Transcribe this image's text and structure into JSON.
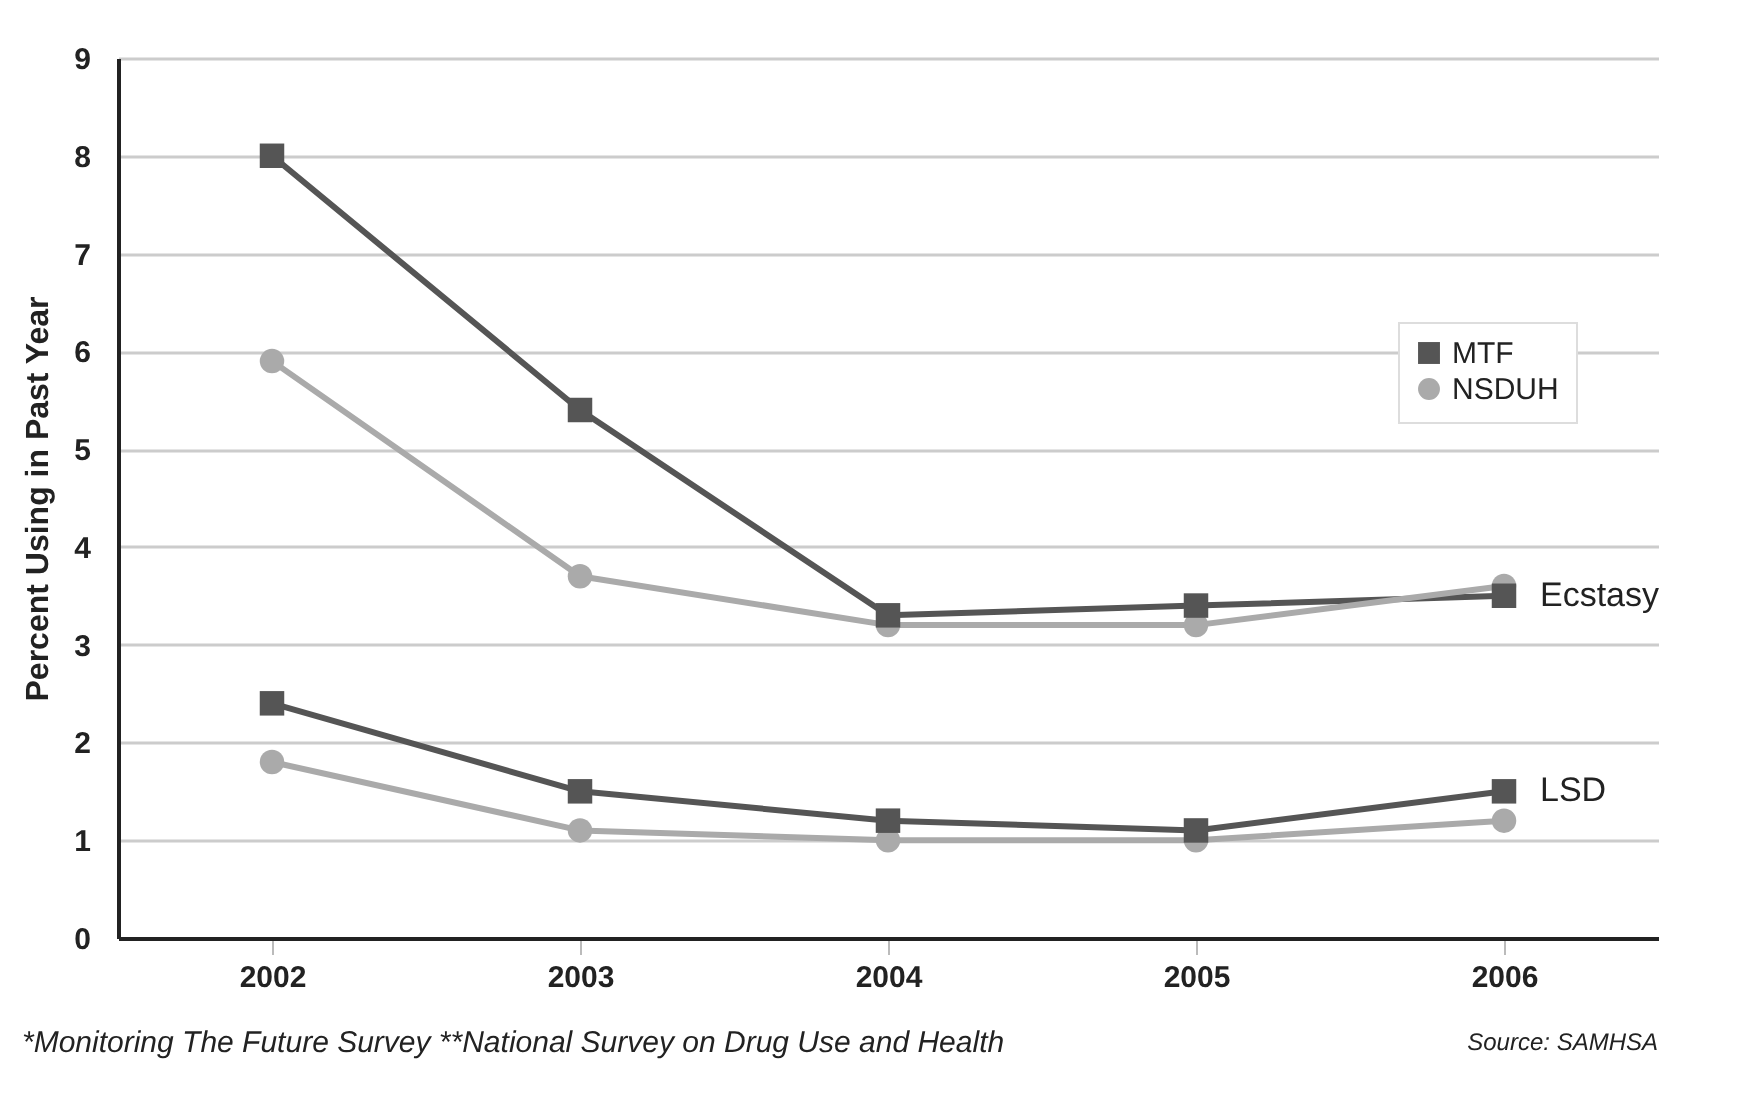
{
  "chart_data": {
    "type": "line",
    "ylabel": "Percent Using in Past Year",
    "categories": [
      "2002",
      "2003",
      "2004",
      "2005",
      "2006"
    ],
    "series": [
      {
        "name": "MTF",
        "color": "#555555",
        "marker": "square",
        "values": [
          8.0,
          5.4,
          3.3,
          3.4,
          3.5
        ]
      },
      {
        "name": "NSDUH",
        "color": "#aaaaaa",
        "marker": "circle",
        "values": [
          5.9,
          3.7,
          3.2,
          3.2,
          3.6
        ]
      },
      {
        "color": "#555555",
        "marker": "square",
        "values": [
          2.4,
          1.5,
          1.2,
          1.1,
          1.5
        ]
      },
      {
        "color": "#aaaaaa",
        "marker": "circle",
        "values": [
          1.8,
          1.1,
          1.0,
          1.0,
          1.2
        ]
      }
    ],
    "ylim": [
      0,
      9
    ],
    "yticks": [
      0,
      1,
      2,
      3,
      4,
      5,
      6,
      7,
      8,
      9
    ],
    "grid": "y",
    "legend": "right",
    "line_style": "solid",
    "annotations": [
      {
        "text": "Ecstasy",
        "x": "2006",
        "y": 3.5
      },
      {
        "text": "LSD",
        "x": "2006",
        "y": 1.5
      },
      "*Monitoring The Future Survey   **National Survey on Drug Use and Health",
      "Source: SAMHSA"
    ]
  }
}
